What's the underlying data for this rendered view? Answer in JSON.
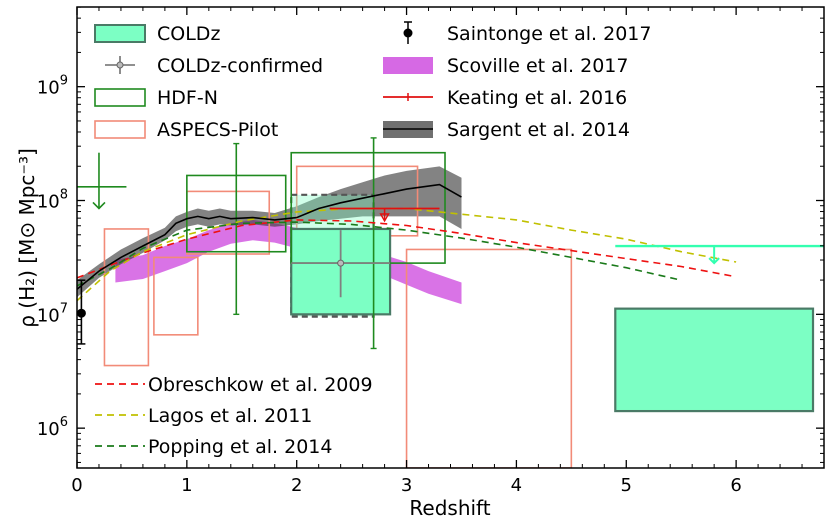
{
  "chart_data": {
    "type": "scatter",
    "xlabel": "Redshift",
    "ylabel": "ρ (H₂) [M⊙ Mpc⁻³]",
    "xlim": [
      0,
      6.8
    ],
    "ylim_log10": [
      5.65,
      9.7
    ],
    "y_scale": "log",
    "x_ticks": [
      {
        "v": 0,
        "label": "0"
      },
      {
        "v": 1,
        "label": "1"
      },
      {
        "v": 2,
        "label": "2"
      },
      {
        "v": 3,
        "label": "3"
      },
      {
        "v": 4,
        "label": "4"
      },
      {
        "v": 5,
        "label": "5"
      },
      {
        "v": 6,
        "label": "6"
      }
    ],
    "y_ticks": [
      {
        "v": 6,
        "base": "10",
        "exp": "6"
      },
      {
        "v": 7,
        "base": "10",
        "exp": "7"
      },
      {
        "v": 8,
        "base": "10",
        "exp": "8"
      },
      {
        "v": 9,
        "base": "10",
        "exp": "9"
      }
    ],
    "colors": {
      "coldz_fill": "#7cffc4",
      "coldz_edge": "#4a7a66",
      "coldz_arrow": "#33ffb0",
      "hdfn": "#1f8a1f",
      "aspecs": "#f28b78",
      "confirmed": "#808080",
      "scoville": "#cc44dd",
      "keating": "#e01010",
      "sargent_fill": "#404040",
      "obreschkow": "#ee1111",
      "lagos": "#c0c000",
      "popping": "#1a7a1a",
      "saintonge": "#000000"
    },
    "legend_upper": {
      "left": [
        {
          "label": "COLDz",
          "key": "coldz"
        },
        {
          "label": "COLDz-confirmed",
          "key": "confirmed"
        },
        {
          "label": "HDF-N",
          "key": "hdfn"
        },
        {
          "label": "ASPECS-Pilot",
          "key": "aspecs"
        }
      ],
      "right": [
        {
          "label": "Saintonge et al. 2017",
          "key": "saintonge"
        },
        {
          "label": "Scoville et al. 2017",
          "key": "scoville"
        },
        {
          "label": "Keating et al. 2016",
          "key": "keating"
        },
        {
          "label": "Sargent et al. 2014",
          "key": "sargent"
        }
      ]
    },
    "legend_lower": [
      {
        "label": "Obreschkow et al. 2009",
        "key": "obreschkow"
      },
      {
        "label": "Lagos et al. 2011",
        "key": "lagos"
      },
      {
        "label": "Popping et al. 2014",
        "key": "popping"
      }
    ],
    "coldz_boxes": [
      {
        "z_range": [
          1.95,
          2.85
        ],
        "logrho_range": [
          7.0,
          7.75
        ]
      },
      {
        "z_range": [
          4.9,
          6.7
        ],
        "logrho_range": [
          6.15,
          7.05
        ]
      }
    ],
    "coldz_confirmed_box": {
      "z_range": [
        1.95,
        2.7
      ],
      "logrho_range": [
        6.98,
        8.05
      ]
    },
    "coldz_confirmed_point": {
      "z": 2.4,
      "logrho": 7.45,
      "z_err": [
        1.95,
        2.85
      ],
      "logrho_err": [
        7.15,
        7.74
      ]
    },
    "coldz_upper_limit": {
      "z_range": [
        4.9,
        6.8
      ],
      "logrho": 7.6,
      "arrow_z": 5.8,
      "arrow_to": 7.45
    },
    "hdfn_boxes": [
      {
        "z_range": [
          1.0,
          1.9
        ],
        "logrho_range": [
          7.55,
          8.22
        ],
        "z_center": 1.45,
        "logrho_err": [
          7.0,
          8.5
        ]
      },
      {
        "z_range": [
          1.95,
          3.35
        ],
        "logrho_range": [
          7.45,
          8.42
        ],
        "z_center": 2.7,
        "logrho_err": [
          6.7,
          8.55
        ]
      }
    ],
    "hdfn_upper_limit": {
      "z": 0.2,
      "z_range": [
        0.0,
        0.45
      ],
      "logrho": 8.12,
      "bar_top": 8.42,
      "arrow_to": 7.93
    },
    "aspecs_boxes": [
      {
        "z_range": [
          0.25,
          0.65
        ],
        "logrho_range": [
          6.55,
          7.75
        ]
      },
      {
        "z_range": [
          0.7,
          1.1
        ],
        "logrho_range": [
          6.82,
          7.5
        ]
      },
      {
        "z_range": [
          1.0,
          1.75
        ],
        "logrho_range": [
          7.53,
          8.08
        ]
      },
      {
        "z_range": [
          2.0,
          3.1
        ],
        "logrho_range": [
          7.69,
          8.3
        ]
      },
      {
        "z_range": [
          3.0,
          4.5
        ],
        "logrho_range": [
          5.65,
          7.57
        ]
      }
    ],
    "saintonge_point": {
      "z": 0.04,
      "logrho": 7.01,
      "logrho_err": [
        6.74,
        7.3
      ]
    },
    "scoville_band": {
      "z": [
        0.35,
        0.6,
        0.8,
        1.0,
        1.2,
        1.4,
        1.6,
        1.8,
        2.0,
        2.2,
        2.4,
        2.6,
        2.8,
        3.0,
        3.2,
        3.5
      ],
      "logrho_lo": [
        7.28,
        7.31,
        7.38,
        7.45,
        7.55,
        7.62,
        7.65,
        7.63,
        7.58,
        7.52,
        7.46,
        7.41,
        7.34,
        7.26,
        7.18,
        7.09
      ],
      "logrho_hi": [
        7.48,
        7.52,
        7.6,
        7.66,
        7.74,
        7.8,
        7.83,
        7.8,
        7.76,
        7.7,
        7.64,
        7.58,
        7.52,
        7.46,
        7.38,
        7.28
      ]
    },
    "sargent_band": {
      "z": [
        0.0,
        0.2,
        0.4,
        0.6,
        0.8,
        0.9,
        1.0,
        1.1,
        1.2,
        1.3,
        1.4,
        1.6,
        1.8,
        2.0,
        2.2,
        2.4,
        2.6,
        2.8,
        3.0,
        3.3,
        3.5
      ],
      "logrho_mid": [
        7.22,
        7.38,
        7.5,
        7.6,
        7.7,
        7.8,
        7.84,
        7.86,
        7.84,
        7.86,
        7.84,
        7.85,
        7.83,
        7.85,
        7.93,
        7.98,
        8.02,
        8.06,
        8.1,
        8.14,
        8.03
      ],
      "logrho_lo": [
        7.15,
        7.32,
        7.44,
        7.54,
        7.65,
        7.73,
        7.77,
        7.79,
        7.77,
        7.79,
        7.78,
        7.79,
        7.77,
        7.79,
        7.82,
        7.84,
        7.86,
        7.86,
        7.86,
        7.86,
        7.75
      ],
      "logrho_hi": [
        7.3,
        7.44,
        7.57,
        7.67,
        7.76,
        7.86,
        7.9,
        7.93,
        7.91,
        7.93,
        7.91,
        7.91,
        7.89,
        7.95,
        8.03,
        8.1,
        8.16,
        8.22,
        8.26,
        8.3,
        8.2
      ]
    },
    "keating": {
      "z_range": [
        2.3,
        3.3
      ],
      "logrho": 7.93,
      "arrow_z": 2.8,
      "arrow_to": 7.82
    },
    "obreschkow": {
      "z": [
        0.0,
        0.3,
        0.6,
        1.0,
        1.5,
        2.0,
        2.5,
        3.0,
        3.5,
        4.0,
        4.5,
        5.0,
        5.5,
        6.0
      ],
      "logrho": [
        7.32,
        7.43,
        7.54,
        7.66,
        7.78,
        7.83,
        7.82,
        7.78,
        7.71,
        7.63,
        7.56,
        7.49,
        7.42,
        7.33
      ]
    },
    "lagos": {
      "z": [
        0.0,
        0.3,
        0.6,
        1.0,
        1.5,
        2.0,
        2.5,
        3.0,
        3.5,
        4.0,
        4.5,
        5.0,
        5.5,
        6.0
      ],
      "logrho": [
        7.12,
        7.38,
        7.55,
        7.7,
        7.82,
        7.9,
        7.93,
        7.93,
        7.88,
        7.83,
        7.74,
        7.66,
        7.55,
        7.46
      ]
    },
    "popping": {
      "z": [
        0.0,
        0.3,
        0.6,
        1.0,
        1.5,
        2.0,
        2.5,
        3.0,
        3.5,
        4.0,
        4.5,
        5.0,
        5.5
      ],
      "logrho": [
        7.25,
        7.4,
        7.58,
        7.74,
        7.8,
        7.81,
        7.79,
        7.74,
        7.67,
        7.59,
        7.5,
        7.41,
        7.3
      ]
    }
  }
}
